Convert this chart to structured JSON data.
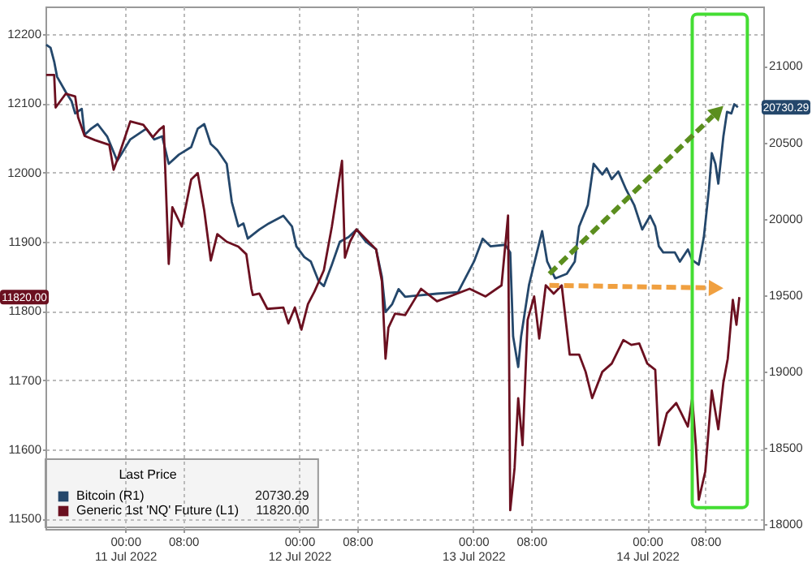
{
  "chart_data": {
    "type": "line",
    "legend_title": "Last Price",
    "legend": "bottom left",
    "grid": true,
    "xlim": [
      "2022-07-10T13:00",
      "2022-07-14T16:00"
    ],
    "xticks": [
      {
        "value": "2022-07-11T00:00",
        "label": "00:00\n11 Jul 2022"
      },
      {
        "value": "2022-07-11T08:00",
        "label": "08:00"
      },
      {
        "value": "2022-07-12T00:00",
        "label": "00:00\n12 Jul 2022"
      },
      {
        "value": "2022-07-12T08:00",
        "label": "08:00"
      },
      {
        "value": "2022-07-13T00:00",
        "label": "00:00\n13 Jul 2022"
      },
      {
        "value": "2022-07-13T08:00",
        "label": "08:00"
      },
      {
        "value": "2022-07-14T00:00",
        "label": "00:00\n14 Jul 2022"
      },
      {
        "value": "2022-07-14T08:00",
        "label": "08:00"
      }
    ],
    "ylim": [
      11485,
      12240
    ],
    "yticks": [
      11500,
      11600,
      11700,
      11800,
      11900,
      12000,
      12100,
      12200
    ],
    "y2lim": [
      17970,
      21390
    ],
    "y2ticks": [
      18000,
      18500,
      19000,
      19500,
      20000,
      20500,
      21000
    ],
    "annotations": [
      "20730.29",
      "11820.00",
      "20730.29",
      "11820.00"
    ],
    "series": [
      {
        "name": "Bitcoin (R1)",
        "color": "#24476b",
        "axis": "y2",
        "x": [
          "2022-07-10T13:06",
          "2022-07-10T13:42",
          "2022-07-10T14:12",
          "2022-07-10T14:36",
          "2022-07-10T15:48",
          "2022-07-10T16:36",
          "2022-07-10T17:06",
          "2022-07-10T18:00",
          "2022-07-10T18:24",
          "2022-07-10T19:18",
          "2022-07-10T20:12",
          "2022-07-10T21:30",
          "2022-07-10T22:54",
          "2022-07-10T23:48",
          "2022-07-11T00:42",
          "2022-07-11T02:54",
          "2022-07-11T04:00",
          "2022-07-11T05:06",
          "2022-07-11T06:00",
          "2022-07-11T07:24",
          "2022-07-11T09:06",
          "2022-07-11T10:00",
          "2022-07-11T10:54",
          "2022-07-11T11:48",
          "2022-07-11T12:42",
          "2022-07-11T14:00",
          "2022-07-11T14:42",
          "2022-07-11T15:36",
          "2022-07-11T16:18",
          "2022-07-11T16:54",
          "2022-07-11T18:30",
          "2022-07-11T19:48",
          "2022-07-11T21:48",
          "2022-07-11T23:00",
          "2022-07-11T23:36",
          "2022-07-12T00:42",
          "2022-07-12T01:36",
          "2022-07-12T02:42",
          "2022-07-12T03:24",
          "2022-07-12T04:30",
          "2022-07-12T05:36",
          "2022-07-12T06:48",
          "2022-07-12T07:54",
          "2022-07-12T09:12",
          "2022-07-12T10:36",
          "2022-07-12T11:24",
          "2022-07-12T11:54",
          "2022-07-12T12:48",
          "2022-07-12T13:42",
          "2022-07-12T14:36",
          "2022-07-12T19:00",
          "2022-07-12T21:54",
          "2022-07-13T00:06",
          "2022-07-13T01:18",
          "2022-07-13T02:24",
          "2022-07-13T04:24",
          "2022-07-13T05:06",
          "2022-07-13T05:30",
          "2022-07-13T06:12",
          "2022-07-13T06:36",
          "2022-07-13T07:42",
          "2022-07-13T09:30",
          "2022-07-13T10:12",
          "2022-07-13T11:18",
          "2022-07-13T12:54",
          "2022-07-13T14:00",
          "2022-07-13T14:36",
          "2022-07-13T15:48",
          "2022-07-13T16:36",
          "2022-07-13T17:48",
          "2022-07-13T18:24",
          "2022-07-13T19:06",
          "2022-07-13T20:00",
          "2022-07-13T21:06",
          "2022-07-13T22:12",
          "2022-07-13T23:18",
          "2022-07-14T00:24",
          "2022-07-14T01:06",
          "2022-07-14T01:36",
          "2022-07-14T02:12",
          "2022-07-14T03:48",
          "2022-07-14T04:30",
          "2022-07-14T05:36",
          "2022-07-14T06:12",
          "2022-07-14T07:06",
          "2022-07-14T07:48",
          "2022-07-14T08:30",
          "2022-07-14T08:54",
          "2022-07-14T09:24",
          "2022-07-14T09:48",
          "2022-07-14T10:30",
          "2022-07-14T11:00",
          "2022-07-14T11:36",
          "2022-07-14T12:00",
          "2022-07-14T12:30"
        ],
        "values": [
          21140,
          21120,
          21030,
          20930,
          20830,
          20770,
          20690,
          20720,
          20550,
          20590,
          20620,
          20540,
          20380,
          20450,
          20520,
          20590,
          20520,
          20540,
          20360,
          20420,
          20470,
          20590,
          20620,
          20490,
          20450,
          20360,
          20110,
          19950,
          19970,
          19870,
          19930,
          19970,
          20020,
          19950,
          19820,
          19750,
          19720,
          19590,
          19560,
          19700,
          19850,
          19880,
          19930,
          19850,
          19800,
          19620,
          19390,
          19440,
          19540,
          19490,
          19510,
          19520,
          19720,
          19870,
          19820,
          19830,
          19780,
          19230,
          19030,
          19230,
          19570,
          19920,
          19720,
          19610,
          19640,
          19720,
          19950,
          20090,
          20360,
          20290,
          20330,
          20260,
          20310,
          20190,
          20090,
          19930,
          20020,
          19950,
          19820,
          19780,
          19780,
          19720,
          19800,
          19730,
          19700,
          19880,
          20190,
          20430,
          20360,
          20230,
          20540,
          20700,
          20690,
          20750,
          20730.29
        ]
      },
      {
        "name": "Generic 1st 'NQ' Future (L1)",
        "color": "#6b1020",
        "axis": "y",
        "x": [
          "2022-07-10T13:06",
          "2022-07-10T14:12",
          "2022-07-10T14:24",
          "2022-07-10T15:48",
          "2022-07-10T17:06",
          "2022-07-10T17:30",
          "2022-07-10T18:24",
          "2022-07-10T19:48",
          "2022-07-10T21:48",
          "2022-07-10T22:24",
          "2022-07-10T23:06",
          "2022-07-11T00:42",
          "2022-07-11T02:30",
          "2022-07-11T03:48",
          "2022-07-11T04:42",
          "2022-07-11T05:18",
          "2022-07-11T06:00",
          "2022-07-11T06:30",
          "2022-07-11T07:48",
          "2022-07-11T09:06",
          "2022-07-11T10:00",
          "2022-07-11T10:54",
          "2022-07-11T11:48",
          "2022-07-11T12:42",
          "2022-07-11T14:00",
          "2022-07-11T15:36",
          "2022-07-11T16:42",
          "2022-07-11T17:24",
          "2022-07-11T17:36",
          "2022-07-11T18:30",
          "2022-07-11T19:36",
          "2022-07-11T21:48",
          "2022-07-11T22:30",
          "2022-07-11T23:24",
          "2022-07-12T00:18",
          "2022-07-12T01:12",
          "2022-07-12T02:06",
          "2022-07-12T03:24",
          "2022-07-12T04:30",
          "2022-07-12T05:54",
          "2022-07-12T06:18",
          "2022-07-12T07:00",
          "2022-07-12T07:54",
          "2022-07-12T09:12",
          "2022-07-12T10:36",
          "2022-07-12T11:24",
          "2022-07-12T11:54",
          "2022-07-12T12:18",
          "2022-07-12T13:12",
          "2022-07-12T14:36",
          "2022-07-12T16:48",
          "2022-07-12T19:00",
          "2022-07-12T23:30",
          "2022-07-13T01:42",
          "2022-07-13T03:54",
          "2022-07-13T04:48",
          "2022-07-13T05:06",
          "2022-07-13T05:42",
          "2022-07-13T06:12",
          "2022-07-13T06:48",
          "2022-07-13T07:30",
          "2022-07-13T08:24",
          "2022-07-13T09:06",
          "2022-07-13T10:00",
          "2022-07-13T11:06",
          "2022-07-13T12:12",
          "2022-07-13T13:18",
          "2022-07-13T14:36",
          "2022-07-13T15:30",
          "2022-07-13T16:24",
          "2022-07-13T17:48",
          "2022-07-13T19:06",
          "2022-07-13T20:42",
          "2022-07-13T21:48",
          "2022-07-13T22:54",
          "2022-07-14T00:00",
          "2022-07-14T01:06",
          "2022-07-14T01:36",
          "2022-07-14T02:42",
          "2022-07-14T04:00",
          "2022-07-14T05:36",
          "2022-07-14T06:12",
          "2022-07-14T06:42",
          "2022-07-14T07:06",
          "2022-07-14T08:00",
          "2022-07-14T08:54",
          "2022-07-14T09:48",
          "2022-07-14T10:30",
          "2022-07-14T11:06",
          "2022-07-14T11:48",
          "2022-07-14T12:18",
          "2022-07-14T12:42"
        ],
        "values": [
          12141,
          12141,
          12094,
          12114,
          12110,
          12080,
          12053,
          12047,
          12040,
          12004,
          12024,
          12074,
          12069,
          12051,
          12062,
          12067,
          11868,
          11950,
          11922,
          11990,
          11999,
          11945,
          11873,
          11911,
          11900,
          11893,
          11882,
          11832,
          11823,
          11825,
          11803,
          11805,
          11782,
          11805,
          11773,
          11810,
          11828,
          11859,
          11922,
          12017,
          11877,
          11900,
          11918,
          11904,
          11889,
          11843,
          11731,
          11776,
          11796,
          11794,
          11832,
          11814,
          11832,
          11821,
          11837,
          11938,
          11512,
          11573,
          11674,
          11606,
          11787,
          11821,
          11760,
          11837,
          11825,
          11837,
          11737,
          11737,
          11712,
          11674,
          11712,
          11724,
          11758,
          11751,
          11753,
          11724,
          11715,
          11606,
          11652,
          11667,
          11633,
          11674,
          11606,
          11527,
          11568,
          11685,
          11629,
          11697,
          11731,
          11816,
          11780,
          11820
        ]
      }
    ]
  }
}
